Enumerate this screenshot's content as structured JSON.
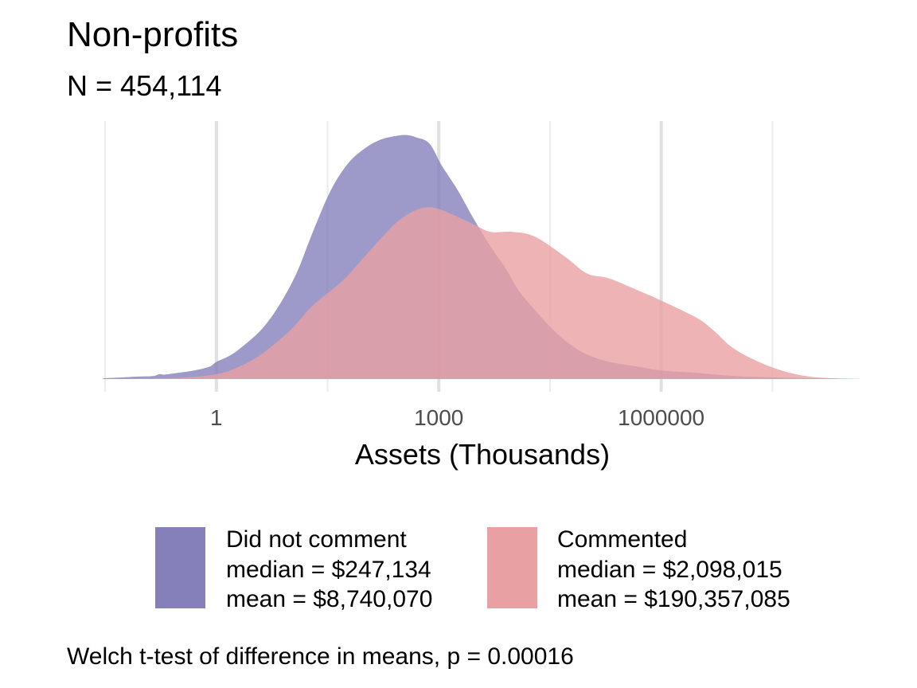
{
  "chart_data": {
    "type": "area",
    "title": "Non-profits",
    "subtitle": "N = 454,114",
    "xlabel": "Assets (Thousands)",
    "ylabel": "",
    "x_scale": "log10",
    "xlim": [
      0.03,
      500000000
    ],
    "x_ticks": [
      {
        "value": 1,
        "label": "1"
      },
      {
        "value": 1000,
        "label": "1000"
      },
      {
        "value": 1000000,
        "label": "1000000"
      }
    ],
    "grid_major": [
      0.03162,
      31.62,
      31623,
      31622777
    ],
    "grid_minor": [
      1,
      1000,
      1000000
    ],
    "grid": true,
    "legend_position": "bottom",
    "series": [
      {
        "name": "Did not comment",
        "median": "median = $247,134",
        "mean": "mean = $8,740,070",
        "color": "#8580BA",
        "x": [
          0.003,
          0.02,
          0.05,
          0.09,
          0.14,
          0.17,
          0.2,
          0.3,
          0.5,
          0.8,
          1,
          1.4,
          2,
          4,
          7,
          12,
          20,
          35,
          60,
          100,
          160,
          250,
          360,
          500,
          750,
          1100,
          1800,
          3000,
          5000,
          8000,
          12000,
          20000,
          35000,
          60000,
          100000,
          200000,
          500000,
          1000000,
          3000000,
          10000000,
          50000000,
          200000000,
          1000000000
        ],
        "y": [
          0,
          0.003,
          0.006,
          0.01,
          0.012,
          0.02,
          0.018,
          0.025,
          0.035,
          0.05,
          0.07,
          0.09,
          0.12,
          0.2,
          0.3,
          0.43,
          0.6,
          0.77,
          0.88,
          0.94,
          0.975,
          0.99,
          0.995,
          0.985,
          0.96,
          0.87,
          0.77,
          0.65,
          0.54,
          0.45,
          0.36,
          0.28,
          0.2,
          0.14,
          0.1,
          0.07,
          0.05,
          0.035,
          0.025,
          0.012,
          0.005,
          0.002,
          0
        ]
      },
      {
        "name": "Commented",
        "median": "median = $2,098,015",
        "mean": "mean = $190,357,085",
        "color": "#E8A0A2",
        "x": [
          0.03,
          0.3,
          1,
          2,
          4,
          10,
          20,
          50,
          100,
          200,
          300,
          500,
          800,
          1300,
          3000,
          5000,
          10000,
          20000,
          50000,
          100000,
          200000,
          500000,
          1000000,
          3000000,
          5000000,
          10000000,
          30000000,
          100000000,
          500000000
        ],
        "y": [
          0,
          0.005,
          0.02,
          0.05,
          0.1,
          0.2,
          0.3,
          0.4,
          0.5,
          0.6,
          0.65,
          0.69,
          0.7,
          0.68,
          0.63,
          0.6,
          0.6,
          0.58,
          0.5,
          0.43,
          0.41,
          0.36,
          0.32,
          0.25,
          0.2,
          0.12,
          0.05,
          0.01,
          0
        ]
      }
    ]
  },
  "caption": "Welch t-test of difference in means, p = 0.00016"
}
